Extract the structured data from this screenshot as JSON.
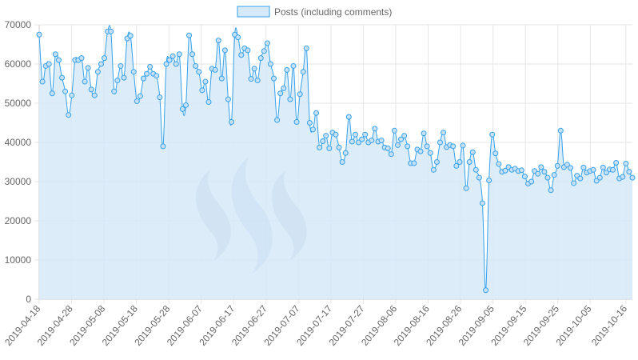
{
  "legend": {
    "label": "Posts (including comments)"
  },
  "colors": {
    "line": "#36a2eb",
    "fill": "#d6e9f8",
    "point_fill": "#c5e0f7",
    "grid": "#e6e6e6",
    "logo": "#8fa8d0"
  },
  "chart_data": {
    "type": "line",
    "fill": true,
    "legend_position": "top-center",
    "grid": true,
    "ylim": [
      0,
      70000
    ],
    "yticks": [
      "0",
      "10000",
      "20000",
      "30000",
      "40000",
      "50000",
      "60000",
      "70000"
    ],
    "x_start": "2019-04-18",
    "x_end": "2019-10-18",
    "xticks": [
      "2019-04-18",
      "2019-04-28",
      "2019-05-08",
      "2019-05-18",
      "2019-05-28",
      "2019-06-07",
      "2019-06-17",
      "2019-06-27",
      "2019-07-07",
      "2019-07-17",
      "2019-07-27",
      "2019-08-06",
      "2019-08-16",
      "2019-08-26",
      "2019-09-05",
      "2019-09-15",
      "2019-09-25",
      "2019-10-05",
      "2019-10-16"
    ],
    "series": [
      {
        "name": "Posts (including comments)",
        "values": [
          67500,
          55500,
          59500,
          60000,
          52500,
          62500,
          61000,
          56500,
          53000,
          47000,
          52000,
          61000,
          61000,
          61500,
          55500,
          59000,
          53500,
          52000,
          58000,
          60000,
          61500,
          68300,
          68300,
          53000,
          55800,
          59500,
          56500,
          66500,
          67200,
          58000,
          50500,
          51800,
          56300,
          57500,
          59300,
          57500,
          57000,
          51500,
          39000,
          60000,
          61000,
          62000,
          60000,
          62500,
          48500,
          49500,
          67300,
          62500,
          59500,
          58000,
          53300,
          55500,
          50300,
          58800,
          58500,
          66000,
          56300,
          63500,
          51000,
          45200,
          67500,
          66800,
          62300,
          64000,
          63500,
          56200,
          58800,
          55800,
          61500,
          63300,
          65300,
          60000,
          56300,
          45700,
          52500,
          53800,
          58500,
          51000,
          59500,
          45200,
          52300,
          58000,
          64000,
          45000,
          43300,
          47500,
          38700,
          40300,
          41700,
          38500,
          42500,
          42000,
          38700,
          35000,
          37300,
          46500,
          40200,
          42000,
          40000,
          40800,
          42000,
          40000,
          40500,
          43500,
          40200,
          40500,
          38700,
          38500,
          37000,
          43000,
          39300,
          40800,
          41700,
          39000,
          34700,
          34700,
          38200,
          37700,
          42300,
          39000,
          37300,
          33000,
          35000,
          40000,
          42500,
          38800,
          39300,
          39000,
          34000,
          35000,
          39200,
          28300,
          35000,
          37500,
          33000,
          31000,
          24500,
          2300,
          30300,
          42000,
          37200,
          34500,
          32500,
          32800,
          33700,
          33000,
          33300,
          32700,
          32900,
          31300,
          29500,
          30000,
          32700,
          32000,
          33700,
          32500,
          31000,
          27800,
          31700,
          34000,
          43000,
          33700,
          34300,
          33500,
          29600,
          31500,
          30800,
          33600,
          32300,
          32700,
          33000,
          30200,
          31000,
          33600,
          32300,
          33100,
          33000,
          34800,
          30800,
          31200,
          34600,
          32500,
          31000
        ]
      }
    ]
  }
}
